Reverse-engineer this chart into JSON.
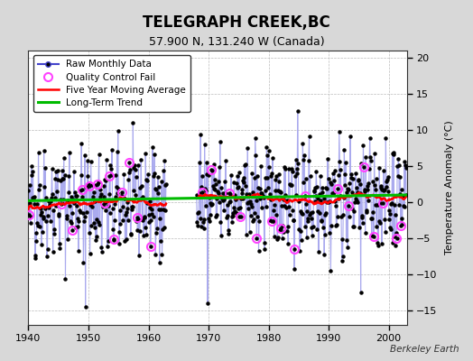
{
  "title": "TELEGRAPH CREEK,BC",
  "subtitle": "57.900 N, 131.240 W (Canada)",
  "ylabel": "Temperature Anomaly (°C)",
  "credit": "Berkeley Earth",
  "xlim": [
    1940,
    2003
  ],
  "ylim": [
    -17,
    21
  ],
  "yticks": [
    -15,
    -10,
    -5,
    0,
    5,
    10,
    15,
    20
  ],
  "xticks": [
    1940,
    1950,
    1960,
    1970,
    1980,
    1990,
    2000
  ],
  "bg_color": "#d8d8d8",
  "plot_bg_color": "#ffffff",
  "line_color_raw": "#4444cc",
  "line_color_raw_light": "#aaaaee",
  "line_color_avg": "#ff0000",
  "line_color_trend": "#00bb00",
  "marker_color": "#000000",
  "qc_color": "#ff44ff",
  "seed": 42,
  "gap_start": 1962.5,
  "gap_end": 1967.5
}
